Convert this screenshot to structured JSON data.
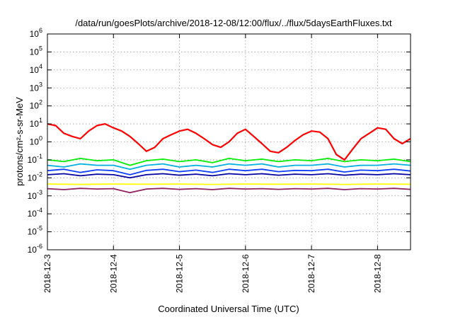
{
  "chart_data": {
    "type": "line",
    "title": "/data/run/goesPlots/archive/2018-12-08/12:00/flux/../flux/5daysEarthFluxes.txt",
    "xlabel": "Coordinated Universal Time (UTC)",
    "ylabel": "protons/cm²-s-sr-MeV",
    "y_scale": "log",
    "ylim": [
      1e-06,
      1000000.0
    ],
    "xlim": [
      "2018-12-03T00:00",
      "2018-12-08T12:00"
    ],
    "grid": true,
    "legend": "none",
    "x_ticks": [
      {
        "value": "2018-12-03T00:00",
        "label": "2018-12-3"
      },
      {
        "value": "2018-12-04T00:00",
        "label": "2018-12-4"
      },
      {
        "value": "2018-12-05T00:00",
        "label": "2018-12-5"
      },
      {
        "value": "2018-12-06T00:00",
        "label": "2018-12-6"
      },
      {
        "value": "2018-12-07T00:00",
        "label": "2018-12-7"
      },
      {
        "value": "2018-12-08T00:00",
        "label": "2018-12-8"
      }
    ],
    "y_ticks": [
      {
        "value": 1000000.0,
        "base": "10",
        "exp": "6"
      },
      {
        "value": 100000.0,
        "base": "10",
        "exp": "5"
      },
      {
        "value": 10000.0,
        "base": "10",
        "exp": "4"
      },
      {
        "value": 1000.0,
        "base": "10",
        "exp": "3"
      },
      {
        "value": 100.0,
        "base": "10",
        "exp": "2"
      },
      {
        "value": 10.0,
        "base": "10",
        "exp": "1"
      },
      {
        "value": 1.0,
        "base": "10",
        "exp": "0"
      },
      {
        "value": 0.1,
        "base": "10",
        "exp": "-1"
      },
      {
        "value": 0.01,
        "base": "10",
        "exp": "-2"
      },
      {
        "value": 0.001,
        "base": "10",
        "exp": "-3"
      },
      {
        "value": 0.0001,
        "base": "10",
        "exp": "-4"
      },
      {
        "value": 1e-05,
        "base": "10",
        "exp": "-5"
      },
      {
        "value": 1e-06,
        "base": "10",
        "exp": "-6"
      }
    ],
    "series": [
      {
        "color": "#ff0000",
        "x": [
          "2018-12-03T00:00",
          "2018-12-03T03:00",
          "2018-12-03T06:00",
          "2018-12-03T09:00",
          "2018-12-03T12:00",
          "2018-12-03T15:00",
          "2018-12-03T18:00",
          "2018-12-03T21:00",
          "2018-12-04T00:00",
          "2018-12-04T03:00",
          "2018-12-04T06:00",
          "2018-12-04T09:00",
          "2018-12-04T12:00",
          "2018-12-04T15:00",
          "2018-12-04T18:00",
          "2018-12-04T21:00",
          "2018-12-05T00:00",
          "2018-12-05T03:00",
          "2018-12-05T06:00",
          "2018-12-05T09:00",
          "2018-12-05T12:00",
          "2018-12-05T15:00",
          "2018-12-05T18:00",
          "2018-12-05T21:00",
          "2018-12-06T00:00",
          "2018-12-06T03:00",
          "2018-12-06T06:00",
          "2018-12-06T09:00",
          "2018-12-06T12:00",
          "2018-12-06T15:00",
          "2018-12-06T18:00",
          "2018-12-06T21:00",
          "2018-12-07T00:00",
          "2018-12-07T03:00",
          "2018-12-07T06:00",
          "2018-12-07T09:00",
          "2018-12-07T12:00",
          "2018-12-07T15:00",
          "2018-12-07T18:00",
          "2018-12-07T21:00",
          "2018-12-08T00:00",
          "2018-12-08T03:00",
          "2018-12-08T06:00",
          "2018-12-08T09:00",
          "2018-12-08T12:00"
        ],
        "values": [
          10,
          8,
          3,
          2,
          1.5,
          4,
          8,
          10,
          6,
          4,
          2,
          0.8,
          0.3,
          0.5,
          1.5,
          2.5,
          4,
          5,
          3,
          1.5,
          0.7,
          0.5,
          1,
          3,
          5,
          2,
          0.8,
          0.3,
          0.25,
          0.5,
          1.2,
          2.5,
          4,
          3.5,
          1.5,
          0.2,
          0.1,
          0.4,
          1.5,
          3,
          6,
          5,
          1.5,
          0.8,
          1.5
        ]
      },
      {
        "color": "#00ee00",
        "x": [
          "2018-12-03T00:00",
          "2018-12-03T06:00",
          "2018-12-03T12:00",
          "2018-12-03T18:00",
          "2018-12-04T00:00",
          "2018-12-04T06:00",
          "2018-12-04T12:00",
          "2018-12-04T18:00",
          "2018-12-05T00:00",
          "2018-12-05T06:00",
          "2018-12-05T12:00",
          "2018-12-05T18:00",
          "2018-12-06T00:00",
          "2018-12-06T06:00",
          "2018-12-06T12:00",
          "2018-12-06T18:00",
          "2018-12-07T00:00",
          "2018-12-07T06:00",
          "2018-12-07T12:00",
          "2018-12-07T18:00",
          "2018-12-08T00:00",
          "2018-12-08T06:00",
          "2018-12-08T12:00"
        ],
        "values": [
          0.1,
          0.08,
          0.12,
          0.09,
          0.1,
          0.05,
          0.09,
          0.11,
          0.08,
          0.1,
          0.07,
          0.12,
          0.09,
          0.11,
          0.08,
          0.1,
          0.09,
          0.12,
          0.08,
          0.1,
          0.09,
          0.11,
          0.08
        ]
      },
      {
        "color": "#00b0e0",
        "x": [
          "2018-12-03T00:00",
          "2018-12-03T06:00",
          "2018-12-03T12:00",
          "2018-12-03T18:00",
          "2018-12-04T00:00",
          "2018-12-04T06:00",
          "2018-12-04T12:00",
          "2018-12-04T18:00",
          "2018-12-05T00:00",
          "2018-12-05T06:00",
          "2018-12-05T12:00",
          "2018-12-05T18:00",
          "2018-12-06T00:00",
          "2018-12-06T06:00",
          "2018-12-06T12:00",
          "2018-12-06T18:00",
          "2018-12-07T00:00",
          "2018-12-07T06:00",
          "2018-12-07T12:00",
          "2018-12-07T18:00",
          "2018-12-08T00:00",
          "2018-12-08T06:00",
          "2018-12-08T12:00"
        ],
        "values": [
          0.05,
          0.04,
          0.06,
          0.05,
          0.05,
          0.03,
          0.05,
          0.06,
          0.04,
          0.05,
          0.04,
          0.06,
          0.05,
          0.06,
          0.04,
          0.05,
          0.05,
          0.06,
          0.04,
          0.05,
          0.05,
          0.06,
          0.05
        ]
      },
      {
        "color": "#1040ff",
        "x": [
          "2018-12-03T00:00",
          "2018-12-03T06:00",
          "2018-12-03T12:00",
          "2018-12-03T18:00",
          "2018-12-04T00:00",
          "2018-12-04T06:00",
          "2018-12-04T12:00",
          "2018-12-04T18:00",
          "2018-12-05T00:00",
          "2018-12-05T06:00",
          "2018-12-05T12:00",
          "2018-12-05T18:00",
          "2018-12-06T00:00",
          "2018-12-06T06:00",
          "2018-12-06T12:00",
          "2018-12-06T18:00",
          "2018-12-07T00:00",
          "2018-12-07T06:00",
          "2018-12-07T12:00",
          "2018-12-07T18:00",
          "2018-12-08T00:00",
          "2018-12-08T06:00",
          "2018-12-08T12:00"
        ],
        "values": [
          0.025,
          0.03,
          0.02,
          0.028,
          0.025,
          0.015,
          0.026,
          0.03,
          0.022,
          0.027,
          0.02,
          0.03,
          0.025,
          0.03,
          0.022,
          0.026,
          0.025,
          0.03,
          0.021,
          0.027,
          0.025,
          0.03,
          0.024
        ]
      },
      {
        "color": "#0000a0",
        "x": [
          "2018-12-03T00:00",
          "2018-12-03T06:00",
          "2018-12-03T12:00",
          "2018-12-03T18:00",
          "2018-12-04T00:00",
          "2018-12-04T06:00",
          "2018-12-04T12:00",
          "2018-12-04T18:00",
          "2018-12-05T00:00",
          "2018-12-05T06:00",
          "2018-12-05T12:00",
          "2018-12-05T18:00",
          "2018-12-06T00:00",
          "2018-12-06T06:00",
          "2018-12-06T12:00",
          "2018-12-06T18:00",
          "2018-12-07T00:00",
          "2018-12-07T06:00",
          "2018-12-07T12:00",
          "2018-12-07T18:00",
          "2018-12-08T00:00",
          "2018-12-08T06:00",
          "2018-12-08T12:00"
        ],
        "values": [
          0.015,
          0.017,
          0.013,
          0.016,
          0.015,
          0.01,
          0.015,
          0.017,
          0.014,
          0.016,
          0.013,
          0.017,
          0.015,
          0.017,
          0.014,
          0.016,
          0.015,
          0.017,
          0.014,
          0.016,
          0.015,
          0.017,
          0.015
        ]
      },
      {
        "color": "#ffff00",
        "x": [
          "2018-12-03T00:00",
          "2018-12-03T12:00",
          "2018-12-04T00:00",
          "2018-12-04T12:00",
          "2018-12-05T00:00",
          "2018-12-05T12:00",
          "2018-12-06T00:00",
          "2018-12-06T12:00",
          "2018-12-07T00:00",
          "2018-12-07T12:00",
          "2018-12-08T00:00",
          "2018-12-08T12:00"
        ],
        "values": [
          0.0045,
          0.0043,
          0.0045,
          0.0044,
          0.0045,
          0.0043,
          0.0045,
          0.0044,
          0.0045,
          0.0043,
          0.0045,
          0.0044
        ]
      },
      {
        "color": "#902060",
        "x": [
          "2018-12-03T00:00",
          "2018-12-03T06:00",
          "2018-12-03T12:00",
          "2018-12-03T18:00",
          "2018-12-04T00:00",
          "2018-12-04T06:00",
          "2018-12-04T12:00",
          "2018-12-04T18:00",
          "2018-12-05T00:00",
          "2018-12-05T06:00",
          "2018-12-05T12:00",
          "2018-12-05T18:00",
          "2018-12-06T00:00",
          "2018-12-06T06:00",
          "2018-12-06T12:00",
          "2018-12-06T18:00",
          "2018-12-07T00:00",
          "2018-12-07T06:00",
          "2018-12-07T12:00",
          "2018-12-07T18:00",
          "2018-12-08T00:00",
          "2018-12-08T06:00",
          "2018-12-08T12:00"
        ],
        "values": [
          0.0025,
          0.0022,
          0.0026,
          0.0024,
          0.0025,
          0.0015,
          0.0024,
          0.0026,
          0.0023,
          0.0025,
          0.0022,
          0.0026,
          0.0024,
          0.0025,
          0.0023,
          0.0025,
          0.0024,
          0.0026,
          0.0022,
          0.0025,
          0.0024,
          0.0026,
          0.0023
        ]
      }
    ]
  }
}
